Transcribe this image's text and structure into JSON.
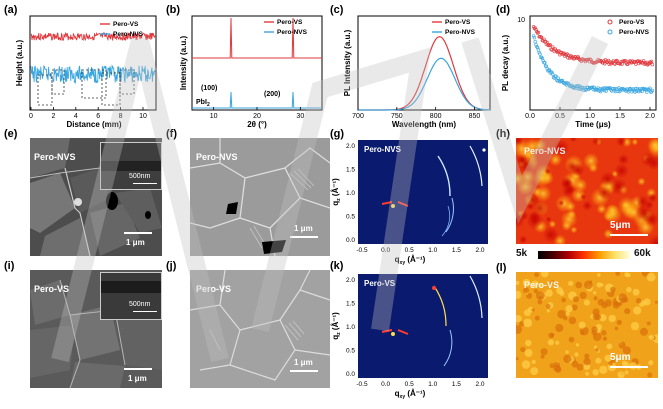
{
  "panel_labels": [
    "(a)",
    "(b)",
    "(c)",
    "(d)",
    "(e)",
    "(f)",
    "(g)",
    "(h)",
    "(i)",
    "(j)",
    "(k)",
    "(l)"
  ],
  "colors": {
    "vs": "#e0393e",
    "nvs": "#3aa6e0",
    "sem_dark": "#3a3a3a",
    "gi_bg": "#0a1a6e"
  },
  "chart_data": [
    {
      "panel": "(a)",
      "type": "line",
      "xlabel": "Distance (mm)",
      "ylabel": "Height (a.u.)",
      "xlim": [
        0,
        11
      ],
      "xticks": [
        "0",
        "2",
        "4",
        "6",
        "8",
        "10"
      ],
      "series": [
        {
          "name": "Pero-VS",
          "level": 0.78,
          "noise": 0.04
        },
        {
          "name": "Pero-NVS",
          "level": 0.38,
          "noise": 0.09
        }
      ]
    },
    {
      "panel": "(b)",
      "type": "line",
      "xlabel": "2θ (°)",
      "ylabel": "Intensity (a.u.)",
      "xlim": [
        5,
        35
      ],
      "xticks": [
        "10",
        "20",
        "30"
      ],
      "annotations": [
        "(100)",
        "PbI",
        "2",
        "(200)"
      ],
      "peaks": [
        14.0,
        28.3
      ],
      "series": [
        {
          "name": "Pero-VS"
        },
        {
          "name": "Pero-NVS"
        }
      ]
    },
    {
      "panel": "(c)",
      "type": "line",
      "xlabel": "Wavelength (nm)",
      "ylabel": "PL Intensity (a.u.)",
      "xlim": [
        700,
        870
      ],
      "xticks": [
        "700",
        "750",
        "800",
        "850"
      ],
      "series": [
        {
          "name": "Pero-VS",
          "peak_nm": 805,
          "peak_rel": 0.78,
          "fwhm_nm": 42
        },
        {
          "name": "Pero-NVS",
          "peak_nm": 807,
          "peak_rel": 0.55,
          "fwhm_nm": 42
        }
      ]
    },
    {
      "panel": "(d)",
      "type": "scatter",
      "xlabel": "Time (μs)",
      "ylabel": "PL decay (a.u.)",
      "xlim": [
        0,
        2.1
      ],
      "xticks": [
        "0.0",
        "0.5",
        "1.0",
        "1.5",
        "2.0"
      ],
      "ytick_top": "10",
      "series": [
        {
          "name": "Pero-VS",
          "end_rel": 0.52
        },
        {
          "name": "Pero-NVS",
          "end_rel": 0.22
        }
      ]
    },
    {
      "panel": "(g)",
      "type": "heatmap",
      "xlabel": "q",
      "xlabel_sub": "xy",
      "xlabel_unit": " (Å⁻¹)",
      "ylabel": "q",
      "ylabel_sub": "z",
      "ylabel_unit": " (Å⁻¹)",
      "xticks": [
        "-0.5",
        "0.0",
        "0.5",
        "1.0",
        "1.5",
        "2.0"
      ],
      "yticks": [
        "2.0",
        "1.5",
        "1.0",
        "0.5",
        "0.0"
      ],
      "sample": "Pero-NVS"
    },
    {
      "panel": "(k)",
      "type": "heatmap",
      "xlabel": "q",
      "xlabel_sub": "xy",
      "xlabel_unit": " (Å⁻¹)",
      "ylabel": "q",
      "ylabel_sub": "z",
      "ylabel_unit": " (Å⁻¹)",
      "xticks": [
        "-0.5",
        "0.0",
        "0.5",
        "1.0",
        "1.5",
        "2.0"
      ],
      "yticks": [
        "2.0",
        "1.5",
        "1.0",
        "0.5",
        "0.0"
      ],
      "sample": "Pero-VS"
    }
  ],
  "sem": {
    "e": {
      "label": "Pero-NVS",
      "inset_scale": "500nm",
      "scale": "1 μm"
    },
    "f": {
      "label": "Pero-NVS",
      "scale": "1 μm"
    },
    "i": {
      "label": "Pero-VS",
      "inset_scale": "500nm",
      "scale": "1 μm"
    },
    "j": {
      "label": "Pero-VS",
      "scale": "1 μm"
    }
  },
  "maps": {
    "h": {
      "label": "Pero-NVS",
      "scale": "5μm"
    },
    "l": {
      "label": "Pero-VS",
      "scale": "5μm"
    },
    "colorbar": {
      "min": "5k",
      "max": "60k"
    }
  }
}
